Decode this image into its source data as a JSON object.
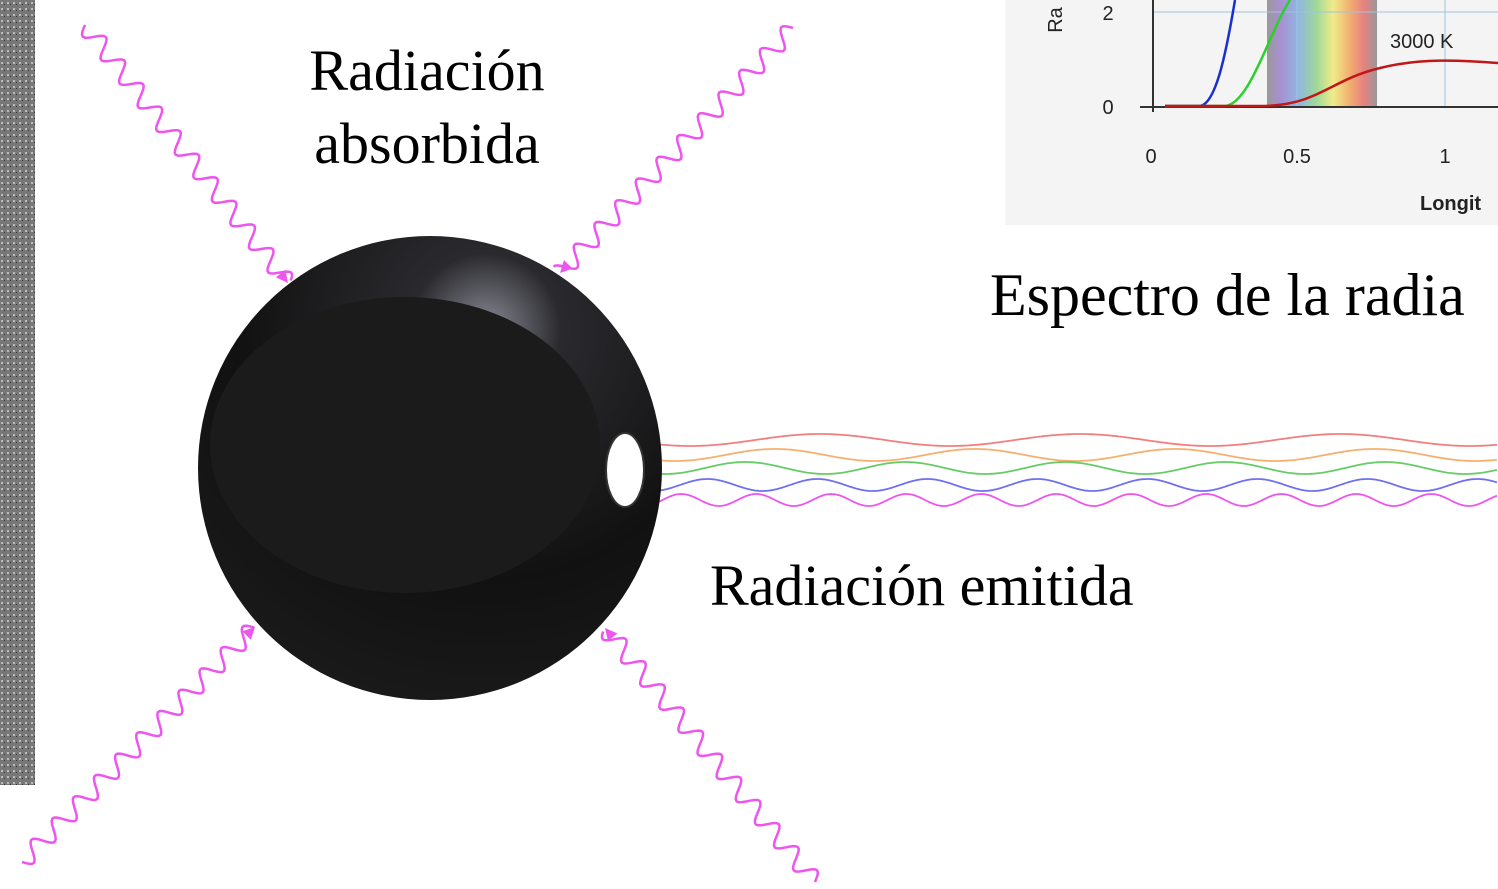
{
  "labels": {
    "absorbed_line1": "Radiación",
    "absorbed_line2": "absorbida",
    "emitted": "Radiación emitida",
    "spectrum_caption": "Espectro de la radia"
  },
  "spectrum_inset": {
    "y_axis_label": "Ra",
    "y_ticks": [
      "2",
      "0"
    ],
    "x_ticks": [
      "0",
      "0.5",
      "1"
    ],
    "x_axis_label": "Longit",
    "curve_label": "3000 K"
  }
}
